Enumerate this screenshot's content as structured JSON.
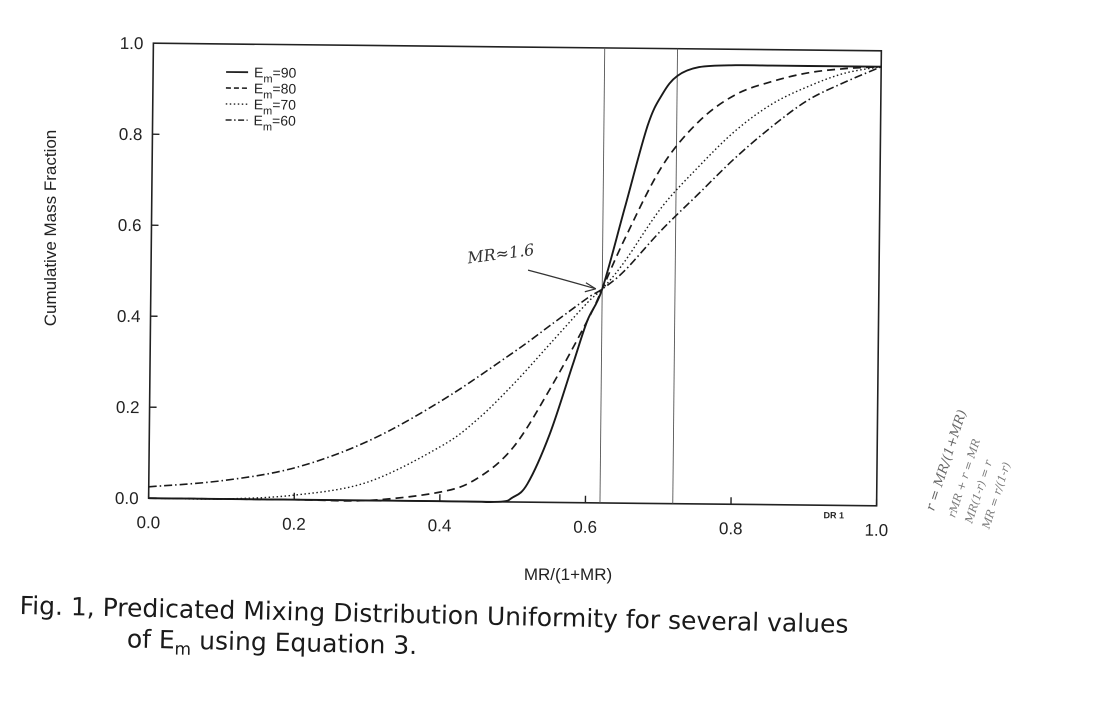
{
  "chart_data": {
    "type": "line",
    "xlabel": "MR/(1+MR)",
    "ylabel": "Cumulative Mass Fraction",
    "xlim": [
      0.0,
      1.0
    ],
    "ylim": [
      0.0,
      1.0
    ],
    "xticks": [
      "0.0",
      "0.2",
      "0.4",
      "0.6",
      "0.8",
      "1.0"
    ],
    "yticks": [
      "0.0",
      "0.2",
      "0.4",
      "0.6",
      "0.8",
      "1.0"
    ],
    "grid": false,
    "legend_position": "top-left",
    "series": [
      {
        "name": "E_m=90",
        "dash": "solid",
        "x": [
          0.0,
          0.4,
          0.48,
          0.5,
          0.52,
          0.55,
          0.58,
          0.6,
          0.62,
          0.65,
          0.68,
          0.7,
          0.72,
          0.75,
          0.8,
          0.85,
          0.9,
          1.0
        ],
        "y": [
          0.0,
          0.0,
          0.0,
          0.01,
          0.04,
          0.15,
          0.3,
          0.4,
          0.47,
          0.65,
          0.83,
          0.9,
          0.94,
          0.96,
          0.965,
          0.965,
          0.965,
          0.965
        ]
      },
      {
        "name": "E_m=80",
        "dash": "dashed",
        "x": [
          0.0,
          0.2,
          0.3,
          0.4,
          0.45,
          0.5,
          0.55,
          0.6,
          0.62,
          0.65,
          0.7,
          0.75,
          0.8,
          0.85,
          0.9,
          0.95,
          1.0
        ],
        "y": [
          0.0,
          0.0,
          0.0,
          0.02,
          0.05,
          0.12,
          0.25,
          0.4,
          0.47,
          0.58,
          0.74,
          0.84,
          0.9,
          0.93,
          0.95,
          0.96,
          0.965
        ]
      },
      {
        "name": "E_m=70",
        "dash": "dotted",
        "x": [
          0.0,
          0.1,
          0.2,
          0.3,
          0.4,
          0.45,
          0.5,
          0.55,
          0.6,
          0.62,
          0.65,
          0.7,
          0.75,
          0.8,
          0.85,
          0.9,
          0.95,
          1.0
        ],
        "y": [
          0.0,
          0.0,
          0.01,
          0.04,
          0.12,
          0.18,
          0.26,
          0.35,
          0.44,
          0.47,
          0.53,
          0.65,
          0.74,
          0.82,
          0.88,
          0.92,
          0.95,
          0.965
        ]
      },
      {
        "name": "E_m=60",
        "dash": "dashdot",
        "x": [
          0.0,
          0.1,
          0.2,
          0.3,
          0.4,
          0.5,
          0.55,
          0.6,
          0.62,
          0.65,
          0.7,
          0.75,
          0.8,
          0.85,
          0.9,
          0.95,
          1.0
        ],
        "y": [
          0.025,
          0.04,
          0.07,
          0.13,
          0.22,
          0.33,
          0.39,
          0.45,
          0.47,
          0.51,
          0.6,
          0.68,
          0.76,
          0.83,
          0.89,
          0.93,
          0.965
        ]
      }
    ],
    "vertical_lines": [
      0.62,
      0.72
    ],
    "annotations": [
      {
        "text": "MR≈1.6",
        "point": [
          0.62,
          0.47
        ],
        "handwritten": true
      },
      {
        "text": "DR 1",
        "position": "bottom-right"
      }
    ]
  },
  "legend_labels": [
    "E",
    "E",
    "E",
    "E"
  ],
  "legend_subs": [
    "m",
    "m",
    "m",
    "m"
  ],
  "legend_values": [
    "=90",
    "=80",
    "=70",
    "=60"
  ],
  "caption": {
    "line1": "Fig. 1, Predicated Mixing Distribution Uniformity for several values",
    "line2_pre": "of E",
    "line2_sub": "m",
    "line2_post": " using Equation 3."
  },
  "handwritten_notes": [
    "r = MR/(1+MR)",
    "rMR + r = MR",
    "MR(1-r) = r",
    "MR = r/(1-r)"
  ]
}
